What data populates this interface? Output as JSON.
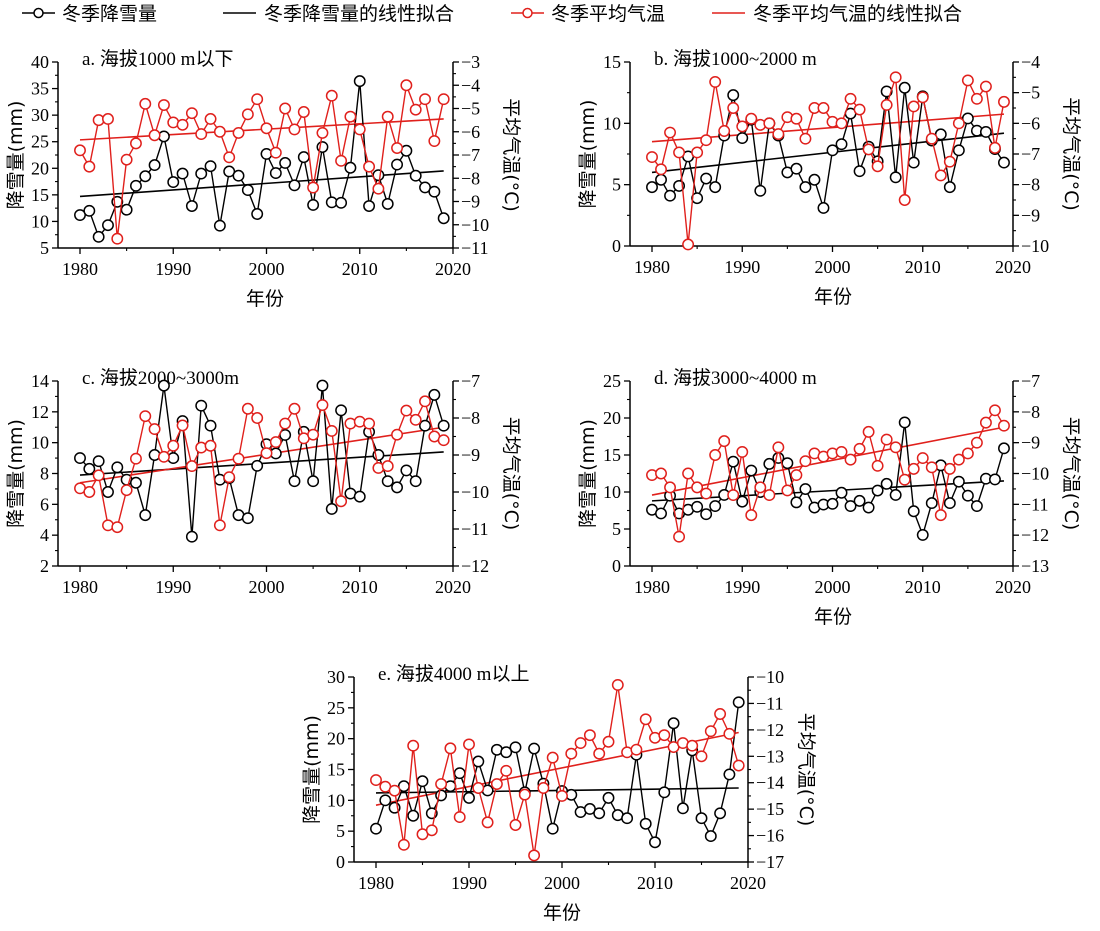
{
  "legend": {
    "items": [
      {
        "label": "冬季降雪量",
        "type": "line-marker",
        "color": "#000000"
      },
      {
        "label": "冬季降雪量的线性拟合",
        "type": "line",
        "color": "#000000"
      },
      {
        "label": "冬季平均气温",
        "type": "line-marker",
        "color": "#e0201c"
      },
      {
        "label": "冬季平均气温的线性拟合",
        "type": "line",
        "color": "#e0201c"
      }
    ]
  },
  "colors": {
    "snow": "#000000",
    "temp": "#e0201c"
  },
  "chart_data": [
    {
      "type": "line",
      "id": "a",
      "title": "a. 海拔1000 m以下",
      "xlabel": "年份",
      "ylabel": "降雪量(mm)",
      "y2label": "平均气温(°C)",
      "xlim": [
        1980,
        2020
      ],
      "xticks": [
        1980,
        1990,
        2000,
        2010,
        2020
      ],
      "ylim": [
        5,
        40
      ],
      "yticks": [
        5,
        10,
        15,
        20,
        25,
        30,
        35,
        40
      ],
      "y2lim": [
        -11,
        -3
      ],
      "y2ticks": [
        -11,
        -10,
        -9,
        -8,
        -7,
        -6,
        -5,
        -4,
        -3
      ],
      "x": [
        1980,
        1981,
        1982,
        1983,
        1984,
        1985,
        1986,
        1987,
        1988,
        1989,
        1990,
        1991,
        1992,
        1993,
        1994,
        1995,
        1996,
        1997,
        1998,
        1999,
        2000,
        2001,
        2002,
        2003,
        2004,
        2005,
        2006,
        2007,
        2008,
        2009,
        2010,
        2011,
        2012,
        2013,
        2014,
        2015,
        2016,
        2017,
        2018,
        2019
      ],
      "series": [
        {
          "name": "冬季降雪量",
          "axis": "left",
          "values": [
            11.2,
            12.0,
            7.1,
            9.3,
            13.7,
            12.2,
            16.7,
            18.5,
            20.6,
            26.0,
            17.4,
            19.0,
            12.9,
            19.0,
            20.4,
            9.2,
            19.4,
            18.6,
            15.9,
            11.4,
            22.7,
            19.1,
            21.0,
            16.8,
            22.1,
            13.1,
            24.0,
            13.6,
            13.5,
            20.1,
            36.4,
            12.9,
            18.7,
            13.3,
            20.7,
            23.3,
            18.6,
            16.4,
            15.6,
            10.6
          ]
        },
        {
          "name": "冬季降雪量的线性拟合",
          "axis": "left",
          "fit": [
            14.7,
            19.5
          ]
        },
        {
          "name": "冬季平均气温",
          "axis": "right",
          "values": [
            -6.8,
            -7.5,
            -5.5,
            -5.45,
            -10.6,
            -7.2,
            -6.5,
            -4.8,
            -6.15,
            -4.85,
            -5.6,
            -5.7,
            -5.2,
            -6.1,
            -5.45,
            -6.0,
            -7.1,
            -6.05,
            -5.25,
            -4.6,
            -5.85,
            -6.9,
            -5.0,
            -5.9,
            -5.15,
            -8.4,
            -6.05,
            -4.45,
            -7.25,
            -5.35,
            -5.9,
            -7.5,
            -8.45,
            -5.35,
            -6.7,
            -4.0,
            -5.05,
            -4.6,
            -6.4,
            -4.6
          ]
        },
        {
          "name": "冬季平均气温的线性拟合",
          "axis": "right",
          "fit": [
            -6.35,
            -5.45
          ]
        }
      ]
    },
    {
      "type": "line",
      "id": "b",
      "title": "b. 海拔1000~2000 m",
      "xlabel": "年份",
      "ylabel": "降雪量(mm)",
      "y2label": "平均气温(°C)",
      "xlim": [
        1980,
        2020
      ],
      "xticks": [
        1980,
        1990,
        2000,
        2010,
        2020
      ],
      "ylim": [
        0,
        15
      ],
      "yticks": [
        0,
        5,
        10,
        15
      ],
      "y2lim": [
        -10,
        -4
      ],
      "y2ticks": [
        -10,
        -9,
        -8,
        -7,
        -6,
        -5,
        -4
      ],
      "x": [
        1980,
        1981,
        1982,
        1983,
        1984,
        1985,
        1986,
        1987,
        1988,
        1989,
        1990,
        1991,
        1992,
        1993,
        1994,
        1995,
        1996,
        1997,
        1998,
        1999,
        2000,
        2001,
        2002,
        2003,
        2004,
        2005,
        2006,
        2007,
        2008,
        2009,
        2010,
        2011,
        2012,
        2013,
        2014,
        2015,
        2016,
        2017,
        2018,
        2019
      ],
      "series": [
        {
          "name": "冬季降雪量",
          "axis": "left",
          "values": [
            4.8,
            5.4,
            4.1,
            4.9,
            7.3,
            3.9,
            5.5,
            4.8,
            9.0,
            12.3,
            8.8,
            10.3,
            4.5,
            10.0,
            9.0,
            6.0,
            6.3,
            4.8,
            5.4,
            3.1,
            7.8,
            8.3,
            10.8,
            6.1,
            8.1,
            6.9,
            12.6,
            5.6,
            12.9,
            6.8,
            12.2,
            8.6,
            9.1,
            4.8,
            7.8,
            10.4,
            9.4,
            9.3,
            7.9,
            6.8
          ]
        },
        {
          "name": "冬季降雪量的线性拟合",
          "axis": "left",
          "fit": [
            6.0,
            9.2
          ]
        },
        {
          "name": "冬季平均气温",
          "axis": "right",
          "values": [
            -7.1,
            -7.5,
            -6.3,
            -6.95,
            -9.95,
            -6.95,
            -6.55,
            -4.65,
            -6.25,
            -5.5,
            -6.1,
            -5.85,
            -6.05,
            -6.0,
            -6.35,
            -5.8,
            -5.85,
            -6.5,
            -5.5,
            -5.5,
            -5.95,
            -6.0,
            -5.2,
            -5.55,
            -6.85,
            -7.4,
            -5.4,
            -4.5,
            -8.5,
            -5.45,
            -5.15,
            -6.5,
            -7.7,
            -7.25,
            -6.0,
            -4.6,
            -5.2,
            -4.8,
            -6.8,
            -5.3
          ]
        },
        {
          "name": "冬季平均气温的线性拟合",
          "axis": "right",
          "fit": [
            -6.6,
            -5.7
          ]
        }
      ]
    },
    {
      "type": "line",
      "id": "c",
      "title": "c. 海拔2000~3000m",
      "xlabel": "",
      "ylabel": "降雪量(mm)",
      "y2label": "平均气温(°C)",
      "xlim": [
        1980,
        2020
      ],
      "xticks": [
        1980,
        1990,
        2000,
        2010,
        2020
      ],
      "ylim": [
        2,
        14
      ],
      "yticks": [
        2,
        4,
        6,
        8,
        10,
        12,
        14
      ],
      "y2lim": [
        -12,
        -7
      ],
      "y2ticks": [
        -12,
        -11,
        -10,
        -9,
        -8,
        -7
      ],
      "x": [
        1980,
        1981,
        1982,
        1983,
        1984,
        1985,
        1986,
        1987,
        1988,
        1989,
        1990,
        1991,
        1992,
        1993,
        1994,
        1995,
        1996,
        1997,
        1998,
        1999,
        2000,
        2001,
        2002,
        2003,
        2004,
        2005,
        2006,
        2007,
        2008,
        2009,
        2010,
        2011,
        2012,
        2013,
        2014,
        2015,
        2016,
        2017,
        2018,
        2019
      ],
      "series": [
        {
          "name": "冬季降雪量",
          "axis": "left",
          "values": [
            9.0,
            8.3,
            8.8,
            6.8,
            8.4,
            7.6,
            7.4,
            5.3,
            9.2,
            13.7,
            9.0,
            11.4,
            3.9,
            12.4,
            11.1,
            7.6,
            7.7,
            5.3,
            5.1,
            8.5,
            9.9,
            9.3,
            10.5,
            7.5,
            10.7,
            7.5,
            13.7,
            5.7,
            12.1,
            6.7,
            6.5,
            10.7,
            9.2,
            7.5,
            7.1,
            8.2,
            7.5,
            11.1,
            13.1,
            11.1
          ]
        },
        {
          "name": "冬季降雪量的线性拟合",
          "axis": "left",
          "fit": [
            7.9,
            9.4
          ]
        },
        {
          "name": "冬季平均气温",
          "axis": "right",
          "values": [
            -9.9,
            -10.0,
            -9.55,
            -10.9,
            -10.95,
            -9.95,
            -9.1,
            -7.95,
            -8.3,
            -9.05,
            -8.75,
            -8.2,
            -9.3,
            -8.8,
            -8.75,
            -10.9,
            -9.6,
            -9.1,
            -7.75,
            -8.0,
            -8.95,
            -8.65,
            -8.15,
            -7.75,
            -8.55,
            -8.45,
            -7.65,
            -8.35,
            -10.25,
            -8.15,
            -8.1,
            -8.15,
            -9.35,
            -9.3,
            -8.45,
            -7.8,
            -8.05,
            -7.55,
            -8.5,
            -8.6
          ]
        },
        {
          "name": "冬季平均气温的线性拟合",
          "axis": "right",
          "fit": [
            -9.75,
            -8.25
          ]
        }
      ]
    },
    {
      "type": "line",
      "id": "d",
      "title": "d. 海拔3000~4000 m",
      "xlabel": "年份",
      "ylabel": "降雪量(mm)",
      "y2label": "平均气温(°C)",
      "xlim": [
        1980,
        2020
      ],
      "xticks": [
        1980,
        1990,
        2000,
        2010,
        2020
      ],
      "ylim": [
        0,
        25
      ],
      "yticks": [
        0,
        5,
        10,
        15,
        20,
        25
      ],
      "y2lim": [
        -13,
        -7
      ],
      "y2ticks": [
        -13,
        -12,
        -11,
        -10,
        -9,
        -8,
        -7
      ],
      "x": [
        1980,
        1981,
        1982,
        1983,
        1984,
        1985,
        1986,
        1987,
        1988,
        1989,
        1990,
        1991,
        1992,
        1993,
        1994,
        1995,
        1996,
        1997,
        1998,
        1999,
        2000,
        2001,
        2002,
        2003,
        2004,
        2005,
        2006,
        2007,
        2008,
        2009,
        2010,
        2011,
        2012,
        2013,
        2014,
        2015,
        2016,
        2017,
        2018,
        2019
      ],
      "series": [
        {
          "name": "冬季降雪量",
          "axis": "left",
          "values": [
            7.6,
            7.1,
            9.5,
            7.1,
            7.6,
            8.0,
            7.0,
            8.1,
            9.6,
            14.1,
            8.7,
            12.9,
            10.0,
            13.8,
            14.6,
            13.9,
            8.6,
            10.4,
            7.9,
            8.3,
            8.4,
            9.9,
            8.1,
            8.8,
            7.9,
            10.2,
            11.1,
            9.6,
            19.4,
            7.4,
            4.2,
            8.5,
            13.6,
            8.5,
            11.4,
            9.5,
            8.1,
            11.8,
            11.7,
            15.9
          ]
        },
        {
          "name": "冬季降雪量的线性拟合",
          "axis": "left",
          "fit": [
            8.8,
            11.5
          ]
        },
        {
          "name": "冬季平均气温",
          "axis": "right",
          "values": [
            -10.05,
            -10.0,
            -10.45,
            -12.05,
            -10.0,
            -10.45,
            -10.65,
            -9.4,
            -8.95,
            -10.7,
            -9.3,
            -11.35,
            -10.45,
            -10.7,
            -9.15,
            -10.55,
            -10.05,
            -9.6,
            -9.35,
            -9.45,
            -9.35,
            -9.3,
            -9.55,
            -9.2,
            -8.65,
            -9.75,
            -8.9,
            -9.15,
            -10.2,
            -9.85,
            -9.5,
            -9.8,
            -11.35,
            -9.85,
            -9.55,
            -9.35,
            -9.0,
            -8.35,
            -7.95,
            -8.45
          ]
        },
        {
          "name": "冬季平均气温的线性拟合",
          "axis": "right",
          "fit": [
            -10.7,
            -8.5
          ]
        }
      ]
    },
    {
      "type": "line",
      "id": "e",
      "title": "e. 海拔4000 m以上",
      "xlabel": "年份",
      "ylabel": "降雪量(mm)",
      "y2label": "平均气温(°C)",
      "xlim": [
        1980,
        2020
      ],
      "xticks": [
        1980,
        1990,
        2000,
        2010,
        2020
      ],
      "ylim": [
        0,
        30
      ],
      "yticks": [
        0,
        5,
        10,
        15,
        20,
        25,
        30
      ],
      "y2lim": [
        -17,
        -10
      ],
      "y2ticks": [
        -17,
        -16,
        -15,
        -14,
        -13,
        -12,
        -11,
        -10
      ],
      "x": [
        1980,
        1981,
        1982,
        1983,
        1984,
        1985,
        1986,
        1987,
        1988,
        1989,
        1990,
        1991,
        1992,
        1993,
        1994,
        1995,
        1996,
        1997,
        1998,
        1999,
        2000,
        2001,
        2002,
        2003,
        2004,
        2005,
        2006,
        2007,
        2008,
        2009,
        2010,
        2011,
        2012,
        2013,
        2014,
        2015,
        2016,
        2017,
        2018,
        2019
      ],
      "series": [
        {
          "name": "冬季降雪量",
          "axis": "left",
          "values": [
            5.4,
            10.0,
            8.8,
            12.3,
            7.5,
            13.1,
            7.9,
            10.8,
            12.3,
            14.4,
            10.4,
            16.3,
            11.6,
            18.2,
            17.8,
            18.6,
            11.3,
            18.4,
            12.7,
            5.4,
            11.5,
            10.9,
            8.1,
            8.6,
            7.9,
            10.4,
            7.6,
            7.1,
            17.4,
            6.2,
            3.2,
            11.3,
            22.5,
            8.7,
            18.1,
            7.1,
            4.2,
            7.9,
            14.2,
            25.9
          ]
        },
        {
          "name": "冬季降雪量的线性拟合",
          "axis": "left",
          "fit": [
            11.2,
            12.0
          ]
        },
        {
          "name": "冬季平均气温",
          "axis": "right",
          "values": [
            -13.9,
            -14.15,
            -14.3,
            -16.35,
            -12.6,
            -15.95,
            -15.8,
            -14.05,
            -12.7,
            -15.3,
            -12.55,
            -14.2,
            -15.5,
            -14.05,
            -13.55,
            -15.6,
            -14.45,
            -16.75,
            -14.2,
            -13.05,
            -14.5,
            -12.9,
            -12.5,
            -12.2,
            -12.9,
            -12.45,
            -10.3,
            -12.85,
            -12.75,
            -11.6,
            -12.3,
            -12.2,
            -12.65,
            -12.5,
            -12.6,
            -13.0,
            -12.05,
            -11.4,
            -12.15,
            -13.35
          ]
        },
        {
          "name": "冬季平均气温的线性拟合",
          "axis": "right",
          "fit": [
            -14.85,
            -12.1
          ]
        }
      ]
    }
  ]
}
